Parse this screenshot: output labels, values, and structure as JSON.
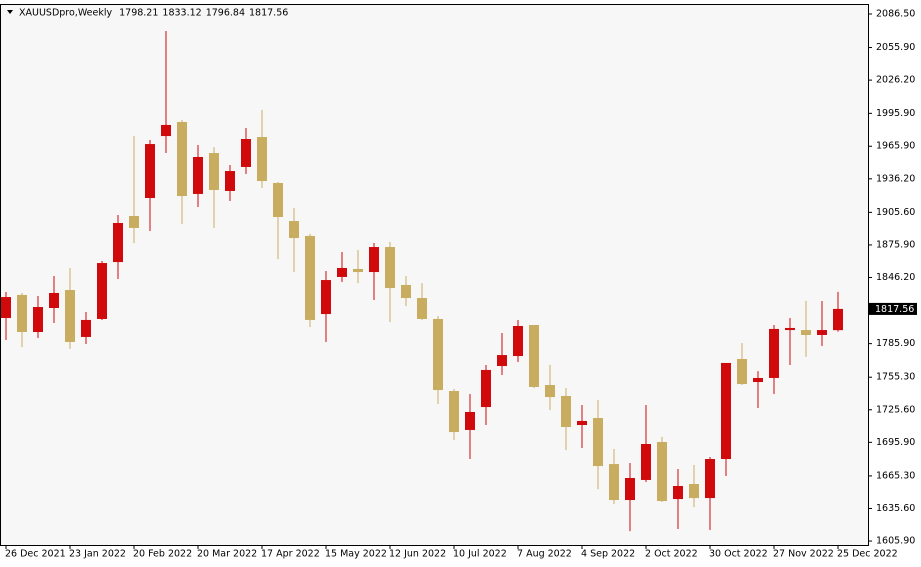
{
  "chart_data": {
    "type": "candlestick",
    "title": "XAUUSDpro,Weekly",
    "categories": [
      "26 Dec 2021",
      null,
      null,
      null,
      "23 Jan 2022",
      null,
      null,
      null,
      "20 Feb 2022",
      null,
      null,
      null,
      "20 Mar 2022",
      null,
      null,
      null,
      "17 Apr 2022",
      null,
      null,
      null,
      "15 May 2022",
      null,
      null,
      null,
      "12 Jun 2022",
      null,
      null,
      null,
      "10 Jul 2022",
      null,
      null,
      null,
      "7 Aug 2022",
      null,
      null,
      null,
      "4 Sep 2022",
      null,
      null,
      null,
      "2 Oct 2022",
      null,
      null,
      null,
      "30 Oct 2022",
      null,
      null,
      null,
      "27 Nov 2022",
      null,
      null,
      null,
      "25 Dec 2022"
    ],
    "open": [
      1809.3,
      1830.3,
      1796.5,
      1818.4,
      1834.8,
      1792.0,
      1808.4,
      1860.3,
      1902.3,
      1918.7,
      1975.2,
      1988.0,
      1922.4,
      1959.7,
      1925.1,
      1947.0,
      1974.3,
      1932.4,
      1897.7,
      1884.1,
      1812.9,
      1846.7,
      1854.0,
      1851.2,
      1874.0,
      1839.4,
      1827.5,
      1808.4,
      1742.7,
      1707.2,
      1728.1,
      1765.5,
      1774.6,
      1802.9,
      1748.2,
      1738.2,
      1711.7,
      1718.1,
      1676.1,
      1643.3,
      1661.6,
      1696.2,
      1644.2,
      1657.9,
      1645.1,
      1680.7,
      1771.9,
      1750.9,
      1754.6,
      1798.3,
      1798.3,
      1793.8,
      1798.21
    ],
    "high": [
      1833.0,
      1832.1,
      1829.4,
      1847.6,
      1854.9,
      1814.7,
      1861.3,
      1903.2,
      1975.2,
      1971.6,
      2071.0,
      1989.8,
      1967.0,
      1965.2,
      1948.8,
      1982.5,
      1999.0,
      1933.3,
      1909.6,
      1885.9,
      1852.1,
      1869.5,
      1871.3,
      1877.7,
      1878.6,
      1847.6,
      1841.2,
      1811.1,
      1744.5,
      1740.0,
      1766.4,
      1795.6,
      1807.5,
      1802.9,
      1766.4,
      1745.4,
      1729.9,
      1734.5,
      1689.8,
      1677.1,
      1729.9,
      1700.8,
      1671.6,
      1675.2,
      1682.5,
      1768.3,
      1786.5,
      1760.9,
      1802.9,
      1809.3,
      1824.8,
      1824.8,
      1833.12
    ],
    "low": [
      1789.2,
      1782.8,
      1791.0,
      1804.7,
      1781.0,
      1785.6,
      1807.5,
      1844.9,
      1877.7,
      1888.6,
      1959.7,
      1895.0,
      1910.5,
      1891.4,
      1916.0,
      1940.6,
      1927.8,
      1863.1,
      1851.2,
      1801.1,
      1787.4,
      1842.1,
      1841.2,
      1825.7,
      1805.6,
      1820.2,
      1807.5,
      1730.9,
      1698.0,
      1680.7,
      1711.7,
      1757.3,
      1769.2,
      1745.4,
      1725.4,
      1688.9,
      1690.7,
      1653.3,
      1639.7,
      1615.0,
      1659.7,
      1641.5,
      1616.9,
      1636.9,
      1616.0,
      1665.2,
      1748.2,
      1727.2,
      1740.0,
      1766.4,
      1773.7,
      1783.7,
      1796.84
    ],
    "close": [
      1828.4,
      1796.5,
      1819.3,
      1832.1,
      1787.4,
      1807.5,
      1859.4,
      1895.9,
      1891.4,
      1967.9,
      1985.3,
      1920.5,
      1956.1,
      1926.0,
      1943.3,
      1972.5,
      1934.2,
      1901.4,
      1882.2,
      1807.5,
      1843.9,
      1854.9,
      1851.2,
      1874.0,
      1836.6,
      1827.5,
      1808.4,
      1743.6,
      1705.3,
      1723.6,
      1761.9,
      1775.5,
      1802.0,
      1746.4,
      1737.2,
      1709.9,
      1715.4,
      1674.3,
      1643.3,
      1663.4,
      1694.4,
      1642.4,
      1656.1,
      1645.1,
      1680.7,
      1768.3,
      1749.1,
      1754.6,
      1799.3,
      1800.2,
      1793.8,
      1798.3,
      1817.56
    ],
    "up_color": "#d0090c",
    "down_color": "#c8ac5f",
    "ylim": [
      1602.3,
      2095.6
    ],
    "yticks": [
      {
        "value": 2086.5,
        "label": "2086.50"
      },
      {
        "value": 2055.9,
        "label": "2055.90"
      },
      {
        "value": 2026.2,
        "label": "2026.20"
      },
      {
        "value": 1995.9,
        "label": "1995.90"
      },
      {
        "value": 1965.9,
        "label": "1965.90"
      },
      {
        "value": 1936.2,
        "label": "1936.20"
      },
      {
        "value": 1905.6,
        "label": "1905.60"
      },
      {
        "value": 1875.9,
        "label": "1875.90"
      },
      {
        "value": 1846.2,
        "label": "1846.20"
      },
      {
        "value": 1785.9,
        "label": "1785.90"
      },
      {
        "value": 1755.3,
        "label": "1755.30"
      },
      {
        "value": 1725.6,
        "label": "1725.60"
      },
      {
        "value": 1695.9,
        "label": "1695.90"
      },
      {
        "value": 1665.3,
        "label": "1665.30"
      },
      {
        "value": 1635.6,
        "label": "1635.60"
      },
      {
        "value": 1605.9,
        "label": "1605.90"
      }
    ],
    "grid": false
  }
}
